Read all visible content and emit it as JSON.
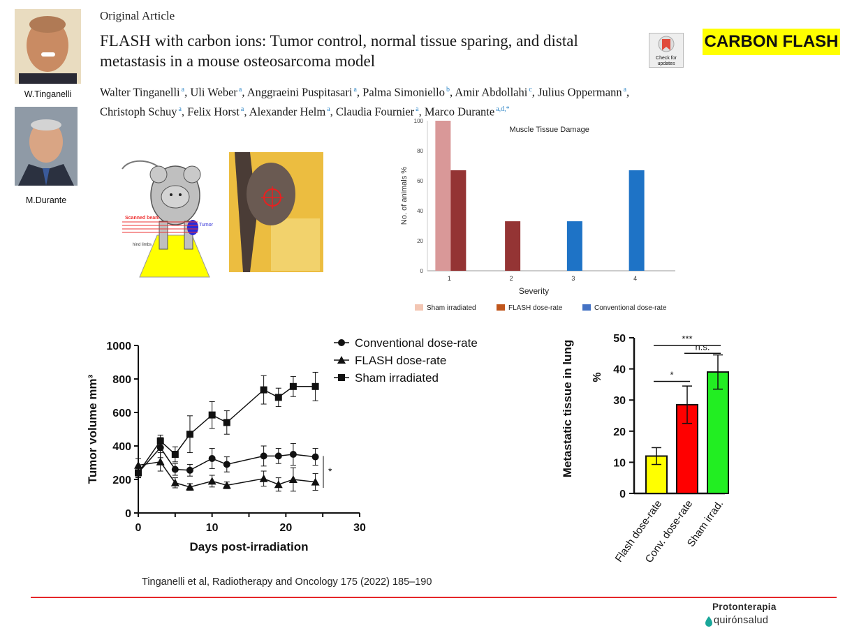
{
  "header": {
    "article_type": "Original Article",
    "title": "FLASH with carbon ions: Tumor control, normal tissue sparing, and distal metastasis in a mouse osteosarcoma model",
    "check_updates": "Check for updates",
    "badge": "CARBON FLASH"
  },
  "authors": [
    {
      "name": "Walter Tinganelli",
      "sup": "a"
    },
    {
      "name": "Uli Weber",
      "sup": "a"
    },
    {
      "name": "Anggraeini Puspitasari",
      "sup": "a"
    },
    {
      "name": "Palma Simoniello",
      "sup": "b"
    },
    {
      "name": "Amir Abdollahi",
      "sup": "c"
    },
    {
      "name": "Julius Oppermann",
      "sup": "a"
    },
    {
      "name": "Christoph Schuy",
      "sup": "a"
    },
    {
      "name": "Felix Horst",
      "sup": "a"
    },
    {
      "name": "Alexander Helm",
      "sup": "a"
    },
    {
      "name": "Claudia Fournier",
      "sup": "a"
    },
    {
      "name": "Marco Durante",
      "sup": "a,d,*"
    }
  ],
  "portraits": [
    {
      "caption": "W.Tinganelli"
    },
    {
      "caption": "M.Durante"
    }
  ],
  "mouse_diagram": {
    "scanned_beam": "Scanned beam",
    "tumor": "Tumor",
    "hind_limbs": "hind limbs"
  },
  "citation": "Tinganelli et al, Radiotherapy and Oncology 175 (2022) 185–190",
  "logo": {
    "line1": "Protonterapia",
    "line2": "quirónsalud"
  },
  "colors": {
    "accent_red": "#e5262a",
    "badge_yellow": "#ffff00"
  },
  "chart_data": [
    {
      "type": "bar",
      "title": "Muscle Tissue Damage",
      "xlabel": "Severity",
      "ylabel": "No. of animals %",
      "categories": [
        "1",
        "2",
        "3",
        "4"
      ],
      "ylim": [
        0,
        100
      ],
      "yticks": [
        0,
        20,
        40,
        60,
        80,
        100
      ],
      "legend_placement": "bottom",
      "series": [
        {
          "name": "Sham irradiated",
          "color": "#d99898",
          "legend_color": "#f3c6b3",
          "values": [
            100,
            0,
            0,
            0
          ]
        },
        {
          "name": "FLASH dose-rate",
          "color": "#943434",
          "legend_color": "#c0561c",
          "values": [
            67,
            33,
            0,
            0
          ]
        },
        {
          "name": "Conventional dose-rate",
          "color": "#1e73c6",
          "legend_color": "#4472c4",
          "values": [
            0,
            0,
            33,
            67
          ]
        }
      ]
    },
    {
      "type": "line",
      "xlabel": "Days post-irradiation",
      "ylabel": "Tumor volume mm³",
      "xlim": [
        0,
        30
      ],
      "ylim": [
        0,
        1000
      ],
      "xticks": [
        0,
        10,
        20,
        30
      ],
      "yticks": [
        0,
        200,
        400,
        600,
        800,
        1000
      ],
      "legend_placement": "top-right",
      "significance": "*",
      "series": [
        {
          "name": "Conventional dose-rate",
          "marker": "circle",
          "x": [
            0,
            3,
            5,
            7,
            10,
            12,
            17,
            19,
            21,
            24
          ],
          "y": [
            240,
            390,
            260,
            255,
            325,
            290,
            340,
            340,
            350,
            335
          ],
          "err": [
            30,
            60,
            35,
            35,
            60,
            45,
            60,
            45,
            65,
            50
          ]
        },
        {
          "name": "FLASH dose-rate",
          "marker": "triangle",
          "x": [
            0,
            3,
            5,
            7,
            10,
            12,
            17,
            19,
            21,
            24
          ],
          "y": [
            285,
            305,
            180,
            155,
            190,
            165,
            205,
            170,
            200,
            185
          ],
          "err": [
            40,
            55,
            30,
            20,
            35,
            20,
            45,
            40,
            70,
            50
          ]
        },
        {
          "name": "Sham irradiated",
          "marker": "square",
          "x": [
            0,
            3,
            5,
            7,
            10,
            12,
            17,
            19,
            21,
            24
          ],
          "y": [
            240,
            430,
            350,
            470,
            585,
            540,
            735,
            690,
            755,
            755
          ],
          "err": [
            25,
            35,
            45,
            110,
            80,
            70,
            85,
            55,
            60,
            85
          ]
        }
      ]
    },
    {
      "type": "bar",
      "ylabel": "Metastatic tissue in lung",
      "unit_label": "%",
      "categories": [
        "Flash dose-rate",
        "Conv. dose-rate",
        "Sham irrad."
      ],
      "values": [
        12,
        28.5,
        39
      ],
      "errors": [
        2.7,
        6,
        5.5
      ],
      "colors": [
        "#ffff00",
        "#ff0000",
        "#22ee22"
      ],
      "ylim": [
        0,
        50
      ],
      "yticks": [
        0,
        10,
        20,
        30,
        40,
        50
      ],
      "significance": [
        {
          "label": "*",
          "from": 0,
          "to": 1
        },
        {
          "label": "***",
          "from": 0,
          "to": 2
        },
        {
          "label": "n.s.",
          "from": 1,
          "to": 2
        }
      ]
    }
  ]
}
